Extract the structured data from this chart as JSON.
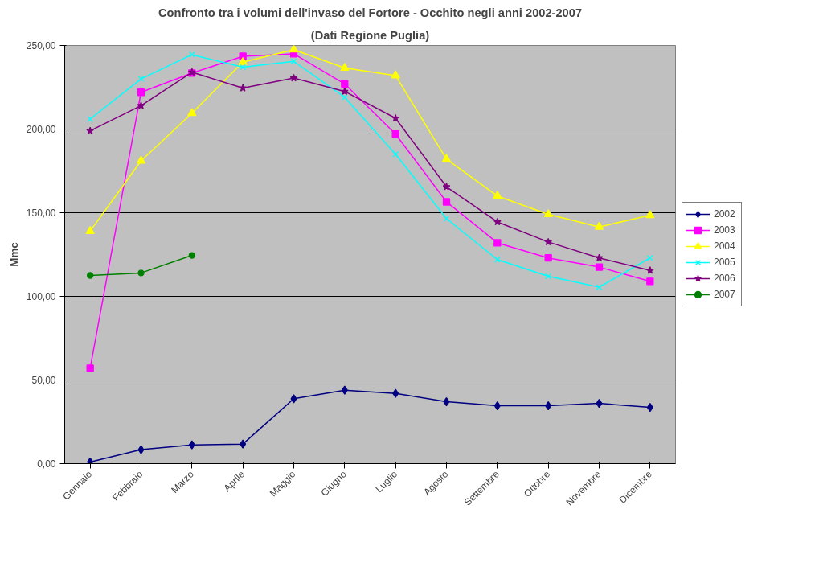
{
  "chart_data": {
    "type": "line",
    "title": "Confronto tra i volumi dell'invaso del Fortore - Occhito negli anni 2002-2007",
    "subtitle": "(Dati Regione Puglia)",
    "ylabel": "Mmc",
    "categories": [
      "Gennaio",
      "Febbraio",
      "Marzo",
      "Aprile",
      "Maggio",
      "Giugno",
      "Luglio",
      "Agosto",
      "Settembre",
      "Ottobre",
      "Novembre",
      "Dicembre"
    ],
    "ylim": [
      0,
      250
    ],
    "yticks": [
      {
        "value": 0,
        "label": "0,00"
      },
      {
        "value": 50,
        "label": "50,00"
      },
      {
        "value": 100,
        "label": "100,00"
      },
      {
        "value": 150,
        "label": "150,00"
      },
      {
        "value": 200,
        "label": "200,00"
      },
      {
        "value": 250,
        "label": "250,00"
      }
    ],
    "grid": "y",
    "legend": "right",
    "series": [
      {
        "name": "2002",
        "color": "#000080",
        "marker": "diamond",
        "values": [
          1,
          8.4,
          11.2,
          11.7,
          38.8,
          43.9,
          42,
          37,
          34.6,
          34.6,
          36,
          33.6
        ]
      },
      {
        "name": "2003",
        "color": "#ff00ff",
        "marker": "square",
        "values": [
          57,
          222,
          233.5,
          243.5,
          245,
          227,
          197,
          156.5,
          132,
          123,
          117.5,
          109
        ]
      },
      {
        "name": "2004",
        "color": "#ffff00",
        "marker": "triangle",
        "values": [
          139,
          181,
          209.5,
          240,
          247.5,
          236.5,
          232,
          182,
          160,
          149,
          141.5,
          148.5
        ]
      },
      {
        "name": "2005",
        "color": "#00ffff",
        "marker": "cross",
        "values": [
          206,
          230,
          244.5,
          237,
          240.5,
          219,
          185,
          146.5,
          122,
          112,
          105.5,
          123
        ]
      },
      {
        "name": "2006",
        "color": "#800080",
        "marker": "star",
        "values": [
          199,
          214,
          234,
          224.5,
          230.5,
          222.5,
          206.5,
          165.5,
          144.5,
          132.5,
          123,
          115.5
        ]
      },
      {
        "name": "2007",
        "color": "#008000",
        "marker": "circle",
        "values": [
          112.5,
          114,
          124.5,
          null,
          null,
          null,
          null,
          null,
          null,
          null,
          null,
          null
        ]
      }
    ]
  }
}
